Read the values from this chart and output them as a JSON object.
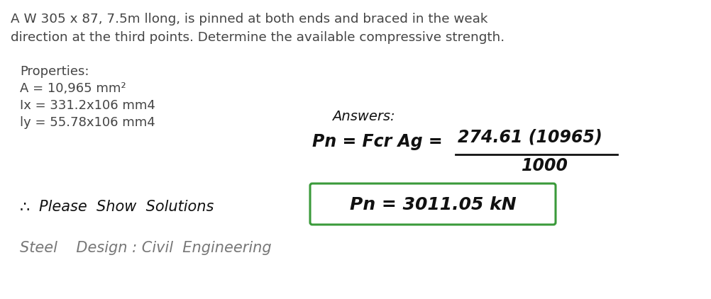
{
  "bg_color": "#ffffff",
  "title_line1": "A W 305 x 87, 7.5m llong, is pinned at both ends and braced in the weak",
  "title_line2": "direction at the third points. Determine the available compressive strength.",
  "properties_header": "Properties:",
  "prop_A": "A = 10,965 mm²",
  "prop_Ix": "Ix = 331.2x106 mm4",
  "prop_Iy": "ly = 55.78x106 mm4",
  "please_show": "∴ Please Show Solutions",
  "footer": "Steel    Design : Civil  Engineering",
  "answers_label": "Answers:",
  "eq1_left": "Pn = Fcr Ag =",
  "eq1_numerator": "274.61 (10965)",
  "eq1_denominator": "1000",
  "eq2": "Pn = 3011.05 kN",
  "box_color": "#3a9a3a",
  "text_color_main": "#444444",
  "text_color_hand": "#111111",
  "text_color_footer": "#777777",
  "title_fontsize": 13.2,
  "prop_fontsize": 13.0,
  "hand_fontsize_large": 17,
  "hand_fontsize_med": 15,
  "answers_fontsize": 14,
  "footer_fontsize": 15
}
